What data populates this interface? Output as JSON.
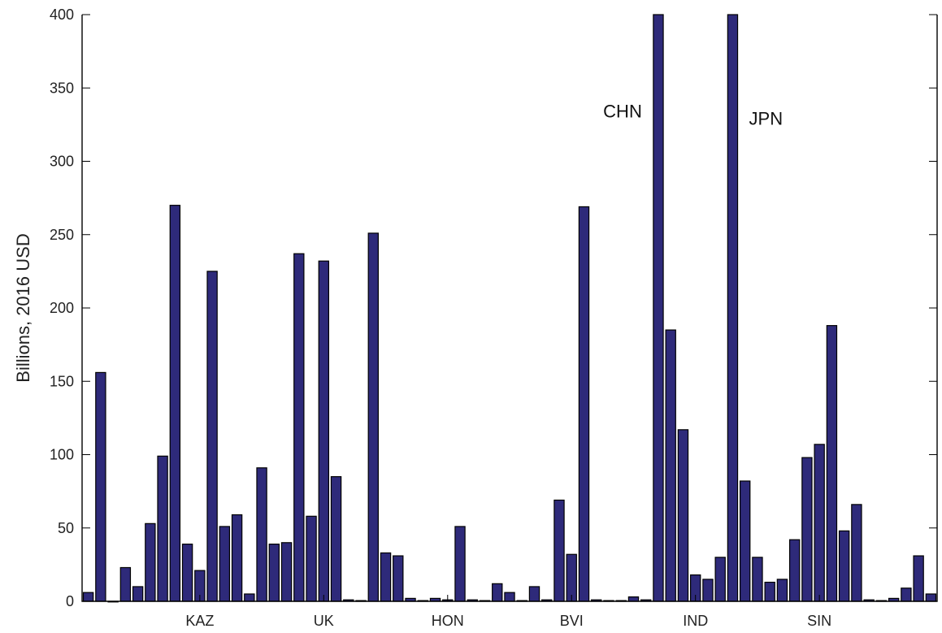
{
  "chart_data": {
    "type": "bar",
    "ylabel": "Billions, 2016 USD",
    "ylim": [
      0,
      400
    ],
    "yticks": [
      0,
      50,
      100,
      150,
      200,
      250,
      300,
      350,
      400
    ],
    "bar_color": "#2e2a7a",
    "grid": false,
    "values": [
      6,
      156,
      0,
      23,
      10,
      53,
      99,
      270,
      39,
      21,
      225,
      51,
      59,
      5,
      91,
      39,
      40,
      237,
      58,
      232,
      85,
      1,
      0.5,
      251,
      33,
      31,
      2,
      0.5,
      2,
      1,
      51,
      1,
      0.5,
      12,
      6,
      0.5,
      10,
      1,
      69,
      32,
      269,
      1,
      0.5,
      0.5,
      3,
      1,
      400,
      185,
      117,
      18,
      15,
      30,
      400,
      82,
      30,
      13,
      15,
      42,
      98,
      107,
      188,
      48,
      66,
      1,
      0.5,
      2,
      9,
      31,
      5
    ],
    "x_labels": [
      {
        "text": "KAZ",
        "index": 9
      },
      {
        "text": "UK",
        "index": 19
      },
      {
        "text": "HON",
        "index": 29
      },
      {
        "text": "BVI",
        "index": 39
      },
      {
        "text": "IND",
        "index": 49
      },
      {
        "text": "SIN",
        "index": 59
      }
    ],
    "annotations": [
      {
        "text": "CHN",
        "index": 46,
        "y": 330,
        "side": "left"
      },
      {
        "text": "JPN",
        "index": 52,
        "y": 325,
        "side": "right"
      }
    ]
  }
}
